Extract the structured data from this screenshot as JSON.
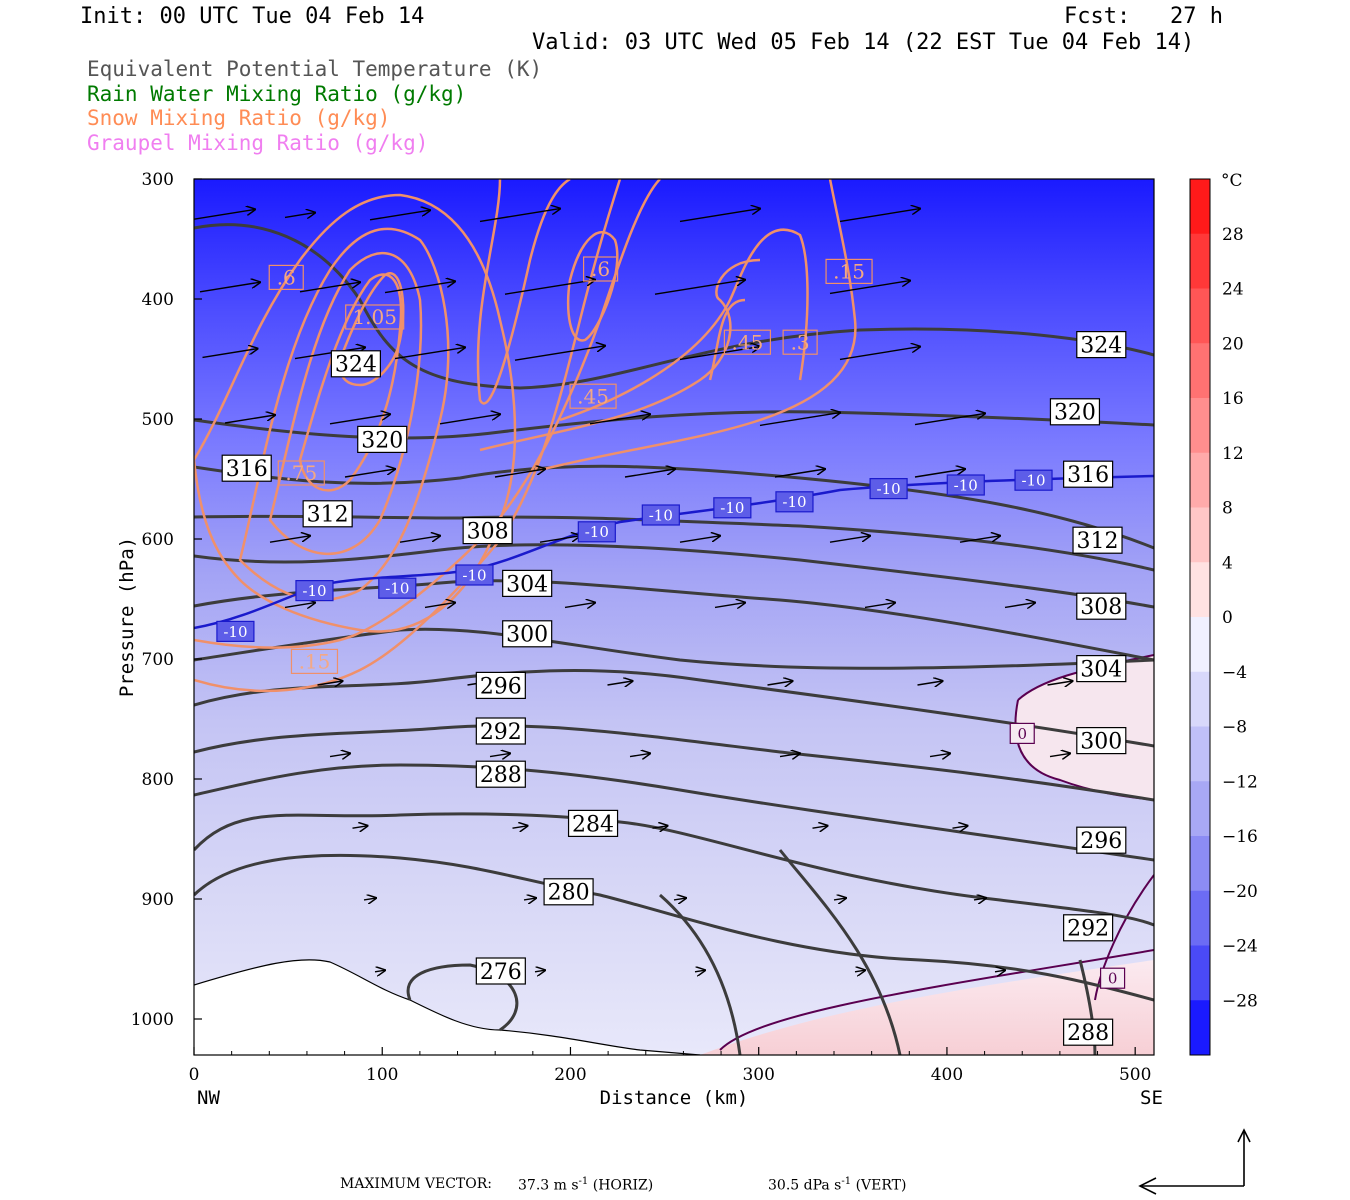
{
  "header": {
    "init": "Init: 00 UTC Tue 04 Feb 14",
    "fcst": "Fcst:   27 h",
    "valid": "Valid: 03 UTC Wed 05 Feb 14 (22 EST Tue 04 Feb 14)"
  },
  "legend": [
    {
      "label": "Equivalent Potential Temperature (K)",
      "color": "#555555"
    },
    {
      "label": "Rain Water Mixing Ratio (g/kg)",
      "color": "#007a00"
    },
    {
      "label": "Snow Mixing Ratio (g/kg)",
      "color": "#ff8c55"
    },
    {
      "label": "Graupel Mixing Ratio (g/kg)",
      "color": "#f07ef0"
    }
  ],
  "chart_data": {
    "type": "cross-section",
    "xlabel": "Distance (km)",
    "ylabel": "Pressure (hPa)",
    "x_ticks": [
      "0",
      "100",
      "200",
      "300",
      "400",
      "500"
    ],
    "x_ends": {
      "left": "NW",
      "right": "SE"
    },
    "y_ticks": [
      "300",
      "400",
      "500",
      "600",
      "700",
      "800",
      "900",
      "1000"
    ],
    "xlim": [
      0,
      510
    ],
    "ylim": [
      300,
      1030
    ],
    "colorbar": {
      "unit": "°C",
      "labels": [
        "28",
        "24",
        "20",
        "16",
        "12",
        "8",
        "4",
        "0",
        "−4",
        "−8",
        "−12",
        "−16",
        "−20",
        "−24",
        "−28"
      ]
    },
    "theta_e_labels": [
      {
        "text": "324",
        "x": 86,
        "p": 454
      },
      {
        "text": "320",
        "x": 100,
        "p": 517
      },
      {
        "text": "316",
        "x": 28,
        "p": 541
      },
      {
        "text": "312",
        "x": 71,
        "p": 579
      },
      {
        "text": "308",
        "x": 156,
        "p": 593
      },
      {
        "text": "304",
        "x": 177,
        "p": 637
      },
      {
        "text": "300",
        "x": 177,
        "p": 679
      },
      {
        "text": "296",
        "x": 163,
        "p": 722
      },
      {
        "text": "292",
        "x": 163,
        "p": 760
      },
      {
        "text": "288",
        "x": 163,
        "p": 796
      },
      {
        "text": "284",
        "x": 212,
        "p": 837
      },
      {
        "text": "280",
        "x": 199,
        "p": 894
      },
      {
        "text": "276",
        "x": 163,
        "p": 960
      },
      {
        "text": "324",
        "x": 482,
        "p": 438
      },
      {
        "text": "320",
        "x": 468,
        "p": 494
      },
      {
        "text": "316",
        "x": 475,
        "p": 546
      },
      {
        "text": "312",
        "x": 480,
        "p": 601
      },
      {
        "text": "308",
        "x": 482,
        "p": 656
      },
      {
        "text": "304",
        "x": 482,
        "p": 708
      },
      {
        "text": "300",
        "x": 482,
        "p": 768
      },
      {
        "text": "296",
        "x": 482,
        "p": 851
      },
      {
        "text": "292",
        "x": 475,
        "p": 924
      },
      {
        "text": "288",
        "x": 475,
        "p": 1011
      }
    ],
    "snow_labels": [
      {
        "text": ".6",
        "x": 49,
        "p": 382
      },
      {
        "text": "1.05",
        "x": 96,
        "p": 415
      },
      {
        "text": ".6",
        "x": 216,
        "p": 375
      },
      {
        "text": ".15",
        "x": 348,
        "p": 377
      },
      {
        "text": ".45",
        "x": 294,
        "p": 436
      },
      {
        "text": ".3",
        "x": 322,
        "p": 436
      },
      {
        "text": ".45",
        "x": 212,
        "p": 481
      },
      {
        "text": ".75",
        "x": 57,
        "p": 545
      },
      {
        "text": ".15",
        "x": 64,
        "p": 702
      }
    ],
    "temp_labels": [
      {
        "text": "-10",
        "x": 22,
        "p": 677
      },
      {
        "text": "-10",
        "x": 64,
        "p": 643
      },
      {
        "text": "-10",
        "x": 108,
        "p": 641
      },
      {
        "text": "-10",
        "x": 149,
        "p": 630
      },
      {
        "text": "-10",
        "x": 214,
        "p": 594
      },
      {
        "text": "-10",
        "x": 248,
        "p": 580
      },
      {
        "text": "-10",
        "x": 286,
        "p": 574
      },
      {
        "text": "-10",
        "x": 319,
        "p": 569
      },
      {
        "text": "-10",
        "x": 369,
        "p": 558
      },
      {
        "text": "-10",
        "x": 410,
        "p": 555
      },
      {
        "text": "-10",
        "x": 446,
        "p": 551
      },
      {
        "text": "0",
        "x": 440,
        "p": 762
      },
      {
        "text": "0",
        "x": 488,
        "p": 966
      }
    ],
    "footer": {
      "prefix": "MAXIMUM VECTOR:",
      "horiz": "37.3 m s",
      "horiz_unit": "(HORIZ)",
      "vert": "30.5 dPa s",
      "vert_unit": "(VERT)",
      "exponent": "-1"
    }
  }
}
